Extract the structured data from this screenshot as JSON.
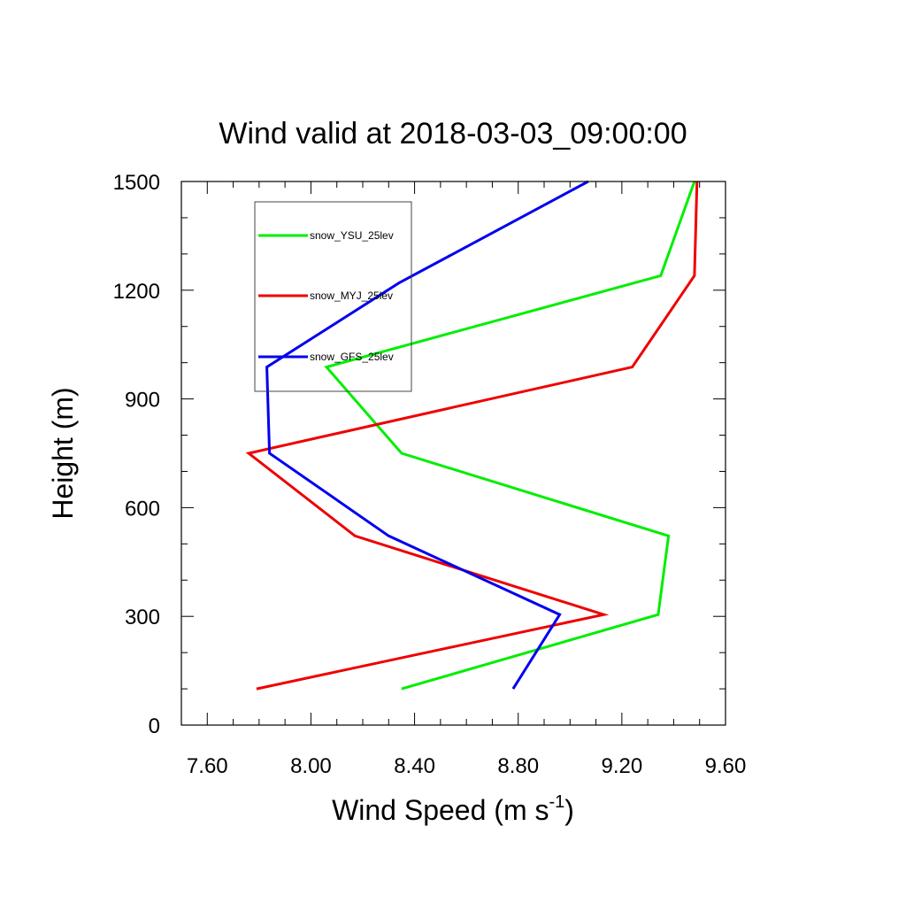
{
  "chart_data": {
    "type": "line",
    "title": "Wind valid at 2018-03-03_09:00:00",
    "xlabel": "Wind Speed (m s",
    "xlabel_superscript": "-1",
    "xlabel_suffix": ")",
    "ylabel": "Height (m)",
    "xlim": [
      7.5,
      9.6
    ],
    "ylim": [
      0,
      1500
    ],
    "x_ticks": [
      7.6,
      8.0,
      8.4,
      8.8,
      9.2,
      9.6
    ],
    "x_tick_labels": [
      "7.60",
      "8.00",
      "8.40",
      "8.80",
      "9.20",
      "9.60"
    ],
    "x_minor_step": 0.1,
    "y_ticks": [
      0,
      300,
      600,
      900,
      1200,
      1500
    ],
    "y_tick_labels": [
      "0",
      "300",
      "600",
      "900",
      "1200",
      "1500"
    ],
    "y_minor_step": 100,
    "grid": false,
    "legend_position": "top-left",
    "series": [
      {
        "name": "snow_YSU_25lev",
        "color": "#00ee00",
        "points": [
          [
            8.35,
            100
          ],
          [
            9.34,
            305
          ],
          [
            9.38,
            522
          ],
          [
            8.35,
            750
          ],
          [
            8.06,
            988
          ],
          [
            9.35,
            1240
          ],
          [
            9.48,
            1500
          ]
        ]
      },
      {
        "name": "snow_MYJ_25lev",
        "color": "#ee0000",
        "points": [
          [
            7.79,
            100
          ],
          [
            9.13,
            305
          ],
          [
            8.17,
            522
          ],
          [
            7.76,
            750
          ],
          [
            9.24,
            988
          ],
          [
            9.48,
            1240
          ],
          [
            9.49,
            1500
          ]
        ]
      },
      {
        "name": "snow_GFS_25lev",
        "color": "#0000ee",
        "points": [
          [
            8.78,
            100
          ],
          [
            8.96,
            305
          ],
          [
            8.3,
            522
          ],
          [
            7.84,
            750
          ],
          [
            7.83,
            988
          ],
          [
            8.34,
            1220
          ],
          [
            9.07,
            1500
          ]
        ]
      }
    ]
  }
}
